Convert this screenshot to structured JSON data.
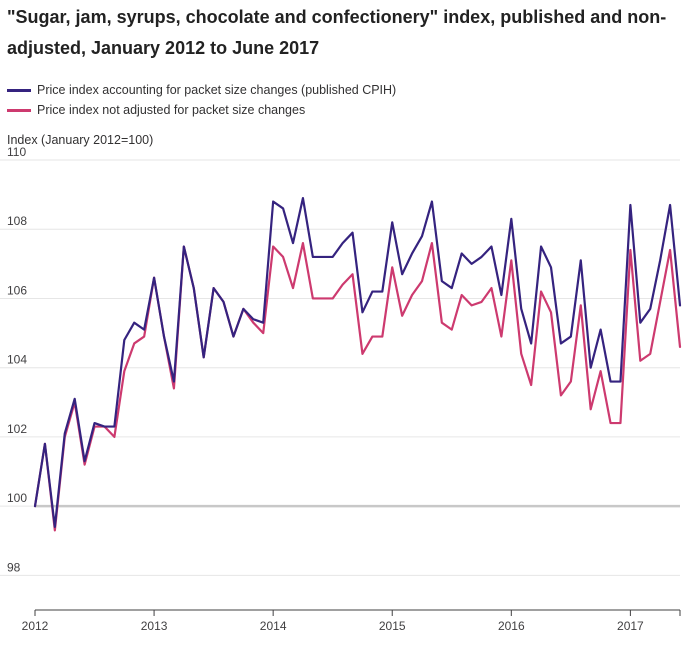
{
  "chart_data": {
    "type": "line",
    "title": "\"Sugar, jam, syrups, chocolate and confectionery\" index, published and non-adjusted, January 2012 to June 2017",
    "ylabel": "Index (January 2012=100)",
    "xlabel": "",
    "ylim": [
      97,
      110
    ],
    "yticks": [
      98,
      100,
      102,
      104,
      106,
      108,
      110
    ],
    "xticks": [
      {
        "label": "2012",
        "index": 0
      },
      {
        "label": "2013",
        "index": 12
      },
      {
        "label": "2014",
        "index": 24
      },
      {
        "label": "2015",
        "index": 36
      },
      {
        "label": "2016",
        "index": 48
      },
      {
        "label": "2017",
        "index": 60
      }
    ],
    "reference_line": 100,
    "series": [
      {
        "name": "Price index accounting for packet size changes (published CPIH)",
        "color": "#35237f",
        "values": [
          100.0,
          101.8,
          99.4,
          102.1,
          103.1,
          101.3,
          102.4,
          102.3,
          102.3,
          104.8,
          105.3,
          105.1,
          106.6,
          104.9,
          103.6,
          107.5,
          106.3,
          104.3,
          106.3,
          105.9,
          104.9,
          105.7,
          105.4,
          105.3,
          108.8,
          108.6,
          107.6,
          108.9,
          107.2,
          107.2,
          107.2,
          107.6,
          107.9,
          105.6,
          106.2,
          106.2,
          108.2,
          106.7,
          107.3,
          107.8,
          108.8,
          106.5,
          106.3,
          107.3,
          107.0,
          107.2,
          107.5,
          106.1,
          108.3,
          105.7,
          104.7,
          107.5,
          106.9,
          104.7,
          104.9,
          107.1,
          104.0,
          105.1,
          103.6,
          103.6,
          108.7,
          105.3,
          105.7,
          107.1,
          108.7,
          105.8
        ]
      },
      {
        "name": "Price index not adjusted for packet size changes",
        "color": "#cd3a6f",
        "values": [
          100.0,
          101.8,
          99.3,
          102.0,
          103.0,
          101.2,
          102.3,
          102.3,
          102.0,
          103.9,
          104.7,
          104.9,
          106.6,
          104.9,
          103.4,
          107.5,
          106.3,
          104.3,
          106.3,
          105.9,
          104.9,
          105.7,
          105.3,
          105.0,
          107.5,
          107.2,
          106.3,
          107.6,
          106.0,
          106.0,
          106.0,
          106.4,
          106.7,
          104.4,
          104.9,
          104.9,
          106.9,
          105.5,
          106.1,
          106.5,
          107.6,
          105.3,
          105.1,
          106.1,
          105.8,
          105.9,
          106.3,
          104.9,
          107.1,
          104.4,
          103.5,
          106.2,
          105.6,
          103.2,
          103.6,
          105.8,
          102.8,
          103.9,
          102.4,
          102.4,
          107.4,
          104.2,
          104.4,
          105.9,
          107.4,
          104.6
        ]
      }
    ]
  }
}
